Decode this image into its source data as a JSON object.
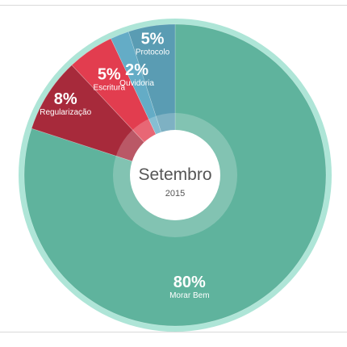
{
  "chart_data": {
    "type": "pie",
    "variant": "donut",
    "center_title": "Setembro",
    "center_subtitle": "2015",
    "slices": [
      {
        "label": "Morar Bem",
        "value": 80,
        "value_label": "80%",
        "color": "#5fb39d"
      },
      {
        "label": "Regularização",
        "value": 8,
        "value_label": "8%",
        "color": "#a72a3b"
      },
      {
        "label": "Escritura",
        "value": 5,
        "value_label": "5%",
        "color": "#e23d4f"
      },
      {
        "label": "Ouvidoria",
        "value": 2,
        "value_label": "2%",
        "color": "#64acc6"
      },
      {
        "label": "Protocolo",
        "value": 5,
        "value_label": "5%",
        "color": "#5a9cb3"
      }
    ],
    "ring_color": "#aee5d7",
    "legend": "none"
  }
}
